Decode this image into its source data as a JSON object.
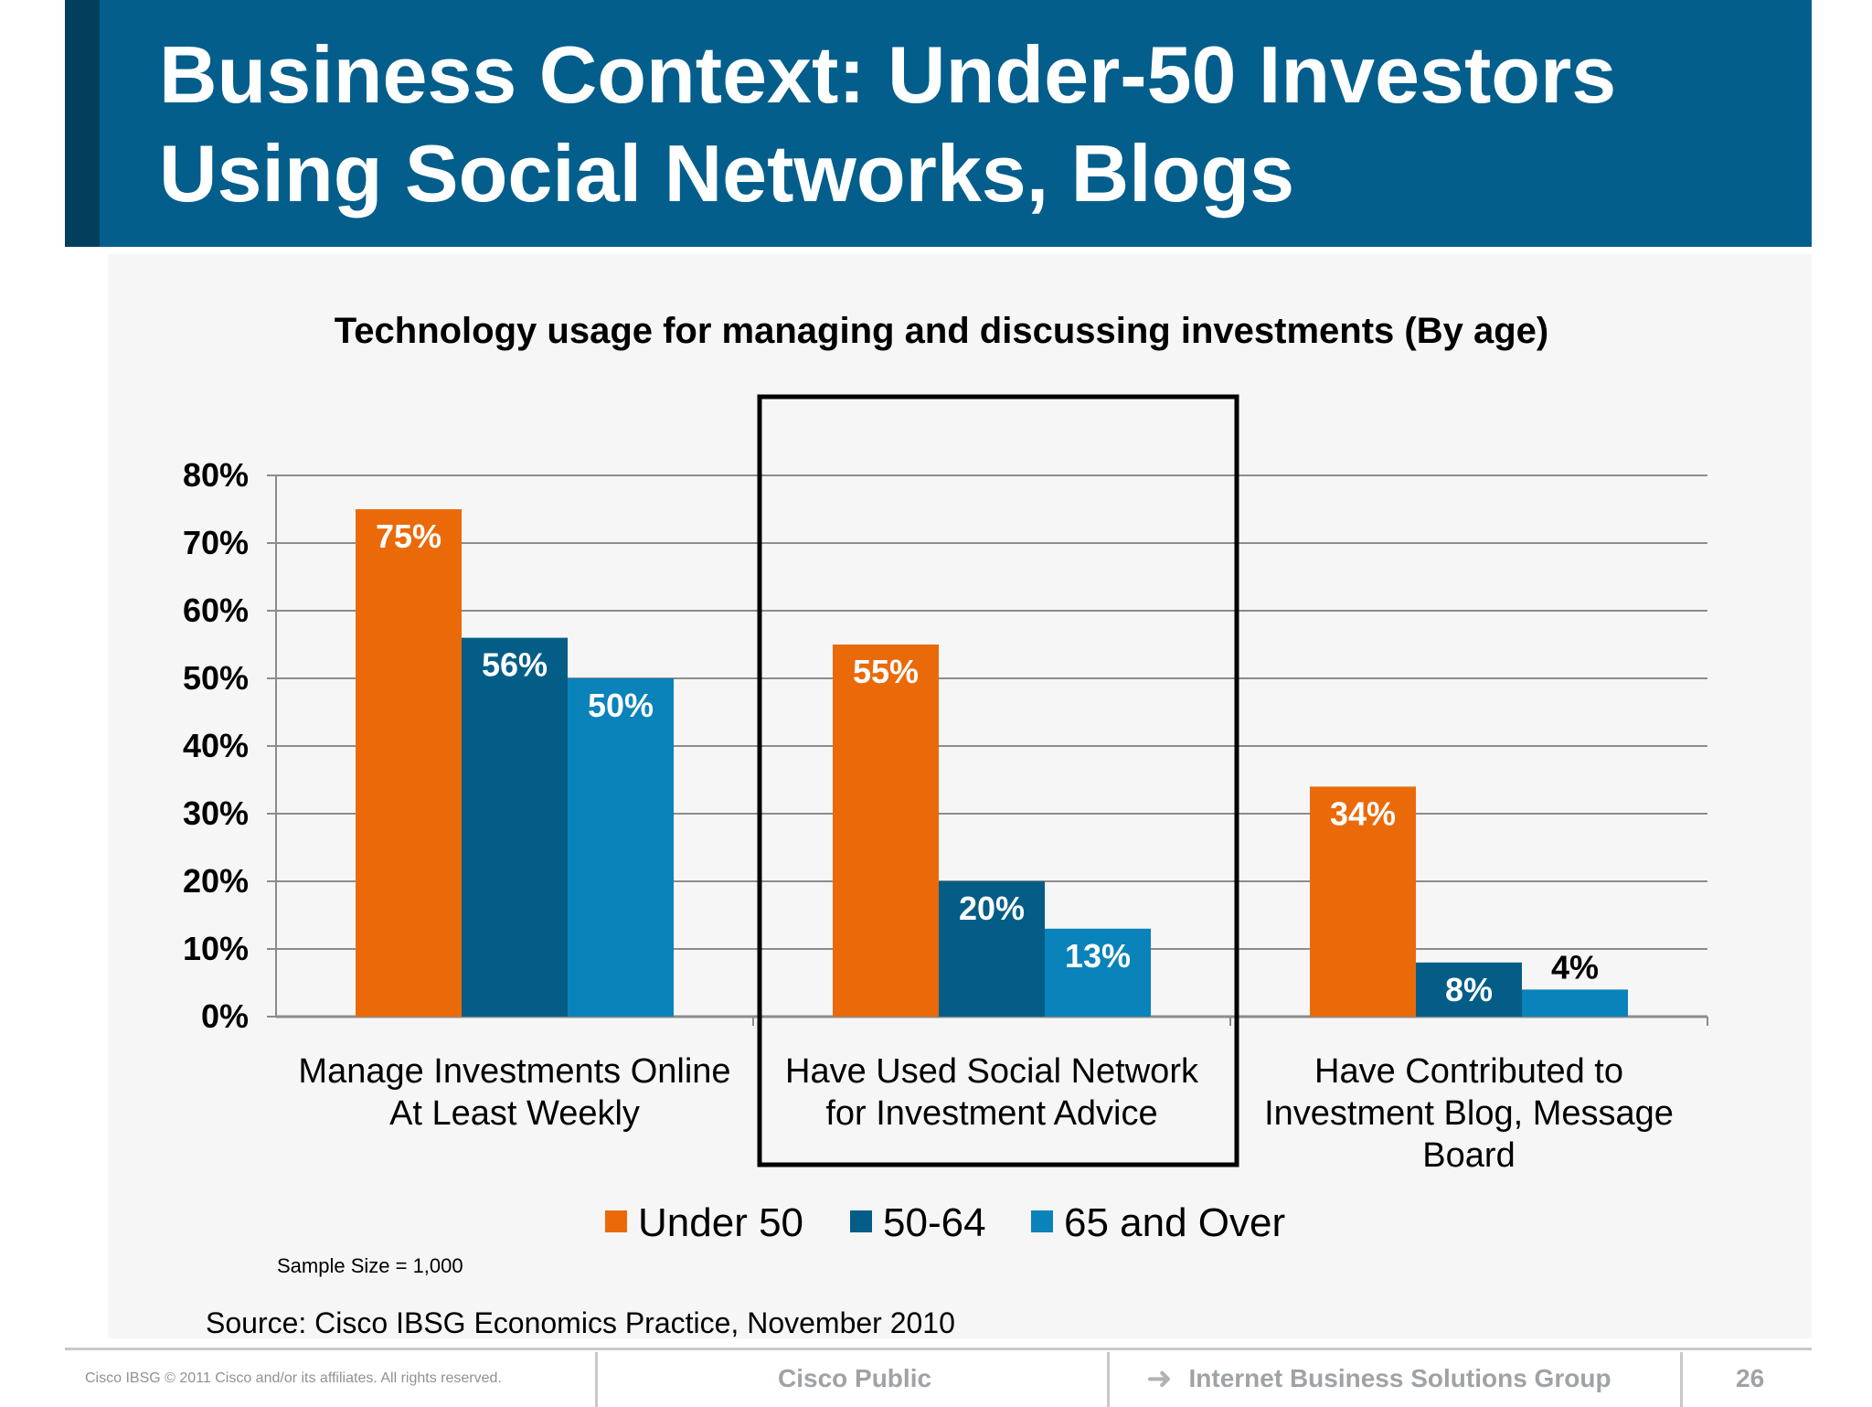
{
  "slide": {
    "title_line1": "Business Context: Under-50 Investors",
    "title_line2": "Using Social Networks, Blogs",
    "sample_size": "Sample Size = 1,000",
    "source": "Source: Cisco IBSG Economics Practice, November 2010"
  },
  "footer": {
    "copyright": "Cisco IBSG © 2011 Cisco and/or its affiliates. All rights reserved.",
    "classification": "Cisco Public",
    "group": "Internet Business Solutions Group",
    "page_number": "26",
    "arrow_icon": "arrow-right-icon"
  },
  "chart_data": {
    "type": "bar",
    "title": "Technology usage for managing and discussing investments (By age)",
    "xlabel": "",
    "ylabel": "",
    "ylim": [
      0,
      80
    ],
    "yticks": [
      "0%",
      "10%",
      "20%",
      "30%",
      "40%",
      "50%",
      "60%",
      "70%",
      "80%"
    ],
    "categories": [
      [
        "Manage Investments Online",
        "At Least Weekly"
      ],
      [
        "Have Used Social Network",
        "for Investment Advice"
      ],
      [
        "Have Contributed to",
        "Investment Blog, Message",
        "Board"
      ]
    ],
    "series": [
      {
        "name": "Under 50",
        "color": "#ea6a0a",
        "values": [
          75,
          55,
          34
        ],
        "labels": [
          "75%",
          "55%",
          "34%"
        ]
      },
      {
        "name": "50-64",
        "color": "#035d87",
        "values": [
          56,
          20,
          8
        ],
        "labels": [
          "56%",
          "20%",
          "8%"
        ]
      },
      {
        "name": "65 and Over",
        "color": "#0a82ba",
        "values": [
          50,
          13,
          4
        ],
        "labels": [
          "50%",
          "13%",
          "4%"
        ]
      }
    ],
    "highlighted_category": 1,
    "grid": true,
    "legend_position": "bottom"
  }
}
